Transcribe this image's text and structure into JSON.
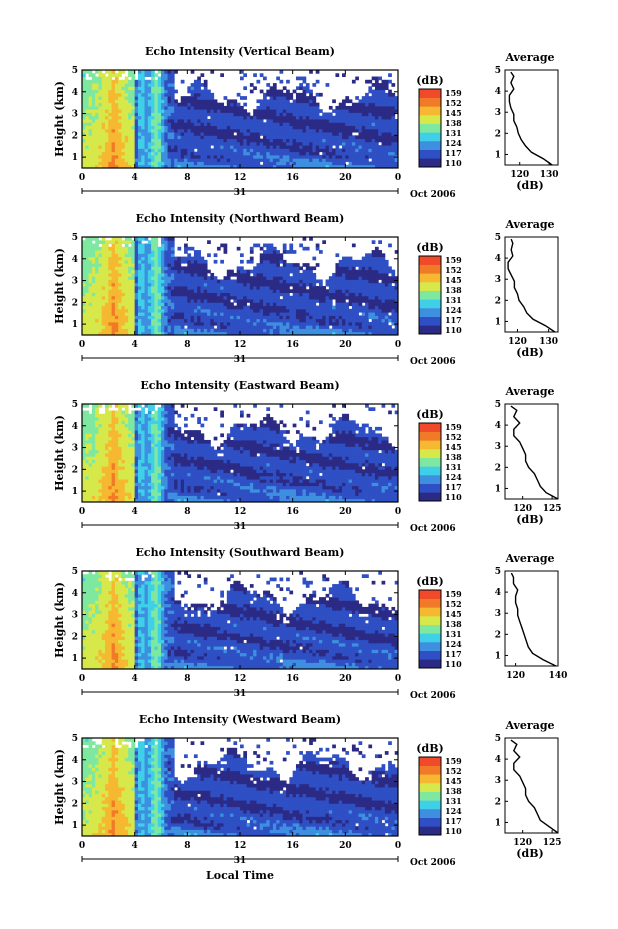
{
  "colors": {
    "background": "#ffffff",
    "colormap": [
      "#2b2b86",
      "#2f4fc4",
      "#3e8fe0",
      "#3fd0e8",
      "#7fe8a0",
      "#d6e84a",
      "#f5b830",
      "#f07a28",
      "#f04a2a"
    ]
  },
  "figure": {
    "x_axis_label": "Local Time",
    "date_label": "Oct 2006",
    "day_label": "31",
    "colorbar_unit": "(dB)",
    "colorbar_ticks": [
      "159",
      "152",
      "145",
      "138",
      "131",
      "124",
      "117",
      "110"
    ]
  },
  "chart_data": [
    {
      "type": "heatmap",
      "title": "Echo Intensity (Vertical Beam)",
      "xlabel": "",
      "ylabel": "Height (km)",
      "x_ticks": [
        "0",
        "4",
        "8",
        "12",
        "16",
        "20",
        "0"
      ],
      "xlim": [
        0,
        24
      ],
      "y_ticks": [
        "1",
        "2",
        "3",
        "4",
        "5"
      ],
      "ylim": [
        0.5,
        5
      ],
      "value_range": [
        110,
        159
      ],
      "average_profile": {
        "title": "Average",
        "xlabel": "(dB)",
        "x_ticks": [
          "120",
          "130"
        ],
        "xlim": [
          115,
          133
        ],
        "y_ticks": [
          "1",
          "2",
          "3",
          "4",
          "5"
        ],
        "height": [
          0.5,
          0.8,
          1.1,
          1.4,
          1.7,
          2.0,
          2.3,
          2.6,
          2.9,
          3.2,
          3.5,
          3.8,
          4.1,
          4.4,
          4.7,
          4.9
        ],
        "db": [
          131,
          128,
          124,
          122,
          120.5,
          119.5,
          119,
          118,
          118,
          117,
          116.5,
          116.5,
          118,
          117,
          118,
          117
        ]
      }
    },
    {
      "type": "heatmap",
      "title": "Echo Intensity (Northward Beam)",
      "xlabel": "",
      "ylabel": "Height (km)",
      "x_ticks": [
        "0",
        "4",
        "8",
        "12",
        "16",
        "20",
        "0"
      ],
      "xlim": [
        0,
        24
      ],
      "y_ticks": [
        "1",
        "2",
        "3",
        "4",
        "5"
      ],
      "ylim": [
        0.5,
        5
      ],
      "value_range": [
        110,
        159
      ],
      "average_profile": {
        "title": "Average",
        "xlabel": "(dB)",
        "x_ticks": [
          "120",
          "130"
        ],
        "xlim": [
          116,
          133
        ],
        "y_ticks": [
          "1",
          "2",
          "3",
          "4",
          "5"
        ],
        "height": [
          0.5,
          0.8,
          1.1,
          1.4,
          1.7,
          2.0,
          2.3,
          2.6,
          2.9,
          3.2,
          3.5,
          3.8,
          4.1,
          4.4,
          4.7,
          4.9
        ],
        "db": [
          132,
          129,
          125,
          123,
          122,
          120.5,
          120,
          119,
          119,
          118,
          117,
          117,
          118.5,
          118,
          118.5,
          118
        ]
      }
    },
    {
      "type": "heatmap",
      "title": "Echo Intensity (Eastward Beam)",
      "xlabel": "",
      "ylabel": "Height (km)",
      "x_ticks": [
        "0",
        "4",
        "8",
        "12",
        "16",
        "20",
        "0"
      ],
      "xlim": [
        0,
        24
      ],
      "y_ticks": [
        "1",
        "2",
        "3",
        "4",
        "5"
      ],
      "ylim": [
        0.5,
        5
      ],
      "value_range": [
        110,
        159
      ],
      "average_profile": {
        "title": "Average",
        "xlabel": "(dB)",
        "x_ticks": [
          "120",
          "125"
        ],
        "xlim": [
          117,
          126
        ],
        "y_ticks": [
          "1",
          "2",
          "3",
          "4",
          "5"
        ],
        "height": [
          0.5,
          0.8,
          1.1,
          1.4,
          1.7,
          2.0,
          2.3,
          2.6,
          2.9,
          3.2,
          3.5,
          3.8,
          4.1,
          4.4,
          4.7,
          4.9
        ],
        "db": [
          126,
          124,
          123,
          122.5,
          122,
          121,
          120.5,
          120.5,
          120,
          119.5,
          118.5,
          118.5,
          119.5,
          118.5,
          119,
          118
        ]
      }
    },
    {
      "type": "heatmap",
      "title": "Echo Intensity (Southward Beam)",
      "xlabel": "",
      "ylabel": "Height (km)",
      "x_ticks": [
        "0",
        "4",
        "8",
        "12",
        "16",
        "20",
        "0"
      ],
      "xlim": [
        0,
        24
      ],
      "y_ticks": [
        "1",
        "2",
        "3",
        "4",
        "5"
      ],
      "ylim": [
        0.5,
        5
      ],
      "value_range": [
        110,
        159
      ],
      "average_profile": {
        "title": "Average",
        "xlabel": "",
        "x_ticks": [
          "120",
          "140"
        ],
        "xlim": [
          115,
          140
        ],
        "y_ticks": [
          "1",
          "2",
          "3",
          "4",
          "5"
        ],
        "height": [
          0.5,
          0.8,
          1.1,
          1.4,
          1.7,
          2.0,
          2.3,
          2.6,
          2.9,
          3.2,
          3.5,
          3.8,
          4.1,
          4.4,
          4.7,
          4.9
        ],
        "db": [
          139,
          133,
          128,
          126,
          125,
          124,
          123,
          122,
          121,
          121,
          120,
          120,
          121,
          119,
          119,
          118
        ]
      }
    },
    {
      "type": "heatmap",
      "title": "Echo Intensity (Westward Beam)",
      "xlabel": "Local Time",
      "ylabel": "Height (km)",
      "x_ticks": [
        "0",
        "4",
        "8",
        "12",
        "16",
        "20",
        "0"
      ],
      "xlim": [
        0,
        24
      ],
      "y_ticks": [
        "1",
        "2",
        "3",
        "4",
        "5"
      ],
      "ylim": [
        0.5,
        5
      ],
      "value_range": [
        110,
        159
      ],
      "average_profile": {
        "title": "Average",
        "xlabel": "(dB)",
        "x_ticks": [
          "120",
          "125"
        ],
        "xlim": [
          117,
          126
        ],
        "y_ticks": [
          "1",
          "2",
          "3",
          "4",
          "5"
        ],
        "height": [
          0.5,
          0.8,
          1.1,
          1.4,
          1.7,
          2.0,
          2.3,
          2.6,
          2.9,
          3.2,
          3.5,
          3.8,
          4.1,
          4.4,
          4.7,
          4.9
        ],
        "db": [
          126,
          124.5,
          123,
          122.5,
          122,
          121,
          120.5,
          120.5,
          120,
          119.5,
          118.5,
          118.5,
          119.5,
          118.5,
          119,
          118
        ]
      }
    }
  ]
}
